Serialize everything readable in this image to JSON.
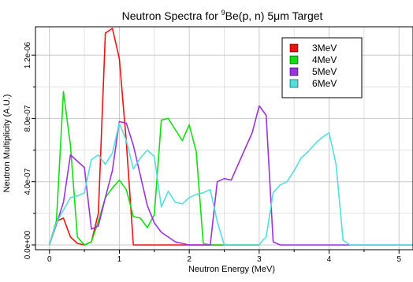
{
  "chart_data": {
    "type": "line",
    "title": {
      "prefix": "Neutron Spectra for ",
      "superscript": "9",
      "suffix": "Be(p, n) 5μm Target"
    },
    "xlabel": "Neutron Energy (MeV)",
    "ylabel": "Neutron Multiplicity (A.U.)",
    "xlim": [
      -0.2,
      5.2
    ],
    "ylim": [
      -3e-08,
      1.38e-06
    ],
    "x_ticks": [
      {
        "value": 0,
        "label": "0"
      },
      {
        "value": 1,
        "label": "1"
      },
      {
        "value": 2,
        "label": "2"
      },
      {
        "value": 3,
        "label": "3"
      },
      {
        "value": 4,
        "label": "4"
      },
      {
        "value": 5,
        "label": "5"
      }
    ],
    "y_ticks": [
      {
        "value": 0,
        "label": "0.0e+00"
      },
      {
        "value": 4e-07,
        "label": "4.0e-07"
      },
      {
        "value": 8e-07,
        "label": "8.0e-07"
      },
      {
        "value": 1.2e-06,
        "label": "1.2e-06"
      }
    ],
    "grid": true,
    "legend_position": "top-right",
    "series": [
      {
        "name": "3MeV",
        "color": "#ee1111",
        "x": [
          0,
          0.1,
          0.2,
          0.3,
          0.4,
          0.5,
          0.6,
          0.7,
          0.8,
          0.9,
          1.0,
          1.1,
          1.2,
          1.3,
          1.5,
          2.0,
          2.5,
          3.0
        ],
        "y": [
          0,
          1.5e-07,
          1.7e-07,
          5e-08,
          1e-08,
          0,
          2e-08,
          2e-07,
          1.34e-06,
          1.37e-06,
          1.18e-06,
          6.5e-07,
          0,
          0,
          0,
          0,
          0,
          0
        ]
      },
      {
        "name": "4MeV",
        "color": "#11dd11",
        "x": [
          0,
          0.1,
          0.2,
          0.3,
          0.4,
          0.5,
          0.6,
          0.7,
          0.8,
          0.9,
          1.0,
          1.1,
          1.2,
          1.3,
          1.4,
          1.5,
          1.6,
          1.7,
          1.8,
          1.9,
          2.0,
          2.1,
          2.2,
          2.3,
          2.5,
          3.0
        ],
        "y": [
          0,
          1.5e-07,
          9.7e-07,
          6.3e-07,
          5e-08,
          0,
          2e-08,
          1.5e-07,
          3e-07,
          3.6e-07,
          4.1e-07,
          3.5e-07,
          1.8e-07,
          1.7e-07,
          1.1e-07,
          1.9e-07,
          7.9e-07,
          8e-07,
          7.3e-07,
          6.6e-07,
          7.6e-07,
          5.9e-07,
          1e-08,
          0,
          0,
          0
        ]
      },
      {
        "name": "5MeV",
        "color": "#9933dd",
        "x": [
          0,
          0.1,
          0.2,
          0.3,
          0.4,
          0.5,
          0.6,
          0.7,
          0.8,
          0.9,
          1.0,
          1.1,
          1.2,
          1.3,
          1.4,
          1.5,
          1.6,
          1.7,
          1.8,
          1.9,
          2.0,
          2.1,
          2.2,
          2.3,
          2.4,
          2.5,
          2.6,
          2.7,
          2.8,
          2.9,
          3.0,
          3.1,
          3.2,
          3.3,
          3.5,
          4.0,
          4.5,
          5.0,
          5.2
        ],
        "y": [
          0,
          1.3e-07,
          2.7e-07,
          5.7e-07,
          5.3e-07,
          4.9e-07,
          1e-07,
          1.2e-07,
          3e-07,
          4.7e-07,
          7.8e-07,
          7.7e-07,
          6.3e-07,
          4.4e-07,
          2.5e-07,
          1.4e-07,
          8e-08,
          5e-08,
          2e-08,
          1e-08,
          0,
          0,
          0,
          0,
          4e-07,
          4.2e-07,
          4.1e-07,
          5.1e-07,
          6.1e-07,
          7.1e-07,
          8.8e-07,
          8.2e-07,
          2e-08,
          0,
          0,
          0,
          0,
          0,
          0
        ]
      },
      {
        "name": "6MeV",
        "color": "#55dddd",
        "x": [
          0,
          0.1,
          0.2,
          0.3,
          0.4,
          0.5,
          0.6,
          0.7,
          0.8,
          0.9,
          1.0,
          1.1,
          1.2,
          1.3,
          1.4,
          1.5,
          1.6,
          1.7,
          1.8,
          1.9,
          2.0,
          2.1,
          2.2,
          2.3,
          2.4,
          2.5,
          2.6,
          2.7,
          3.0,
          3.05,
          3.1,
          3.2,
          3.3,
          3.4,
          3.5,
          3.6,
          3.7,
          3.8,
          3.9,
          4.0,
          4.1,
          4.2,
          4.3,
          4.5,
          5.0,
          5.2
        ],
        "y": [
          0,
          1.4e-07,
          2.2e-07,
          3e-07,
          3.1e-07,
          3.3e-07,
          5.4e-07,
          5.7e-07,
          5.1e-07,
          5.8e-07,
          7.7e-07,
          6.6e-07,
          4.8e-07,
          5.5e-07,
          6e-07,
          5.6e-07,
          2.4e-07,
          3.4e-07,
          2.7e-07,
          2.6e-07,
          3e-07,
          3.2e-07,
          3.3e-07,
          3.5e-07,
          1.5e-07,
          0,
          0,
          0,
          0,
          3e-08,
          5e-08,
          3.3e-07,
          3.8e-07,
          4e-07,
          4.7e-07,
          5.5e-07,
          5.9e-07,
          6.4e-07,
          6.8e-07,
          7.1e-07,
          5.1e-07,
          3e-08,
          0,
          0,
          0,
          0
        ]
      }
    ]
  }
}
